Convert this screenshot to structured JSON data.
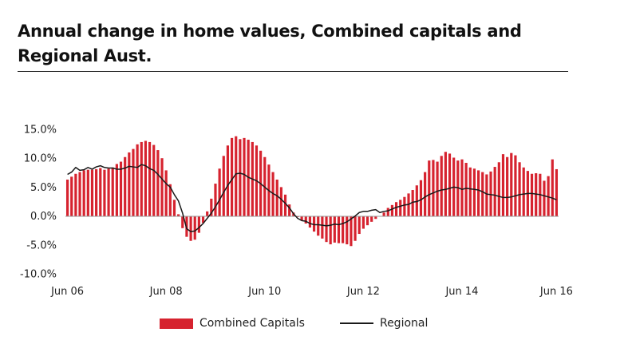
{
  "chart_data": {
    "type": "bar+line",
    "title": "Annual change in home values, Combined capitals and Regional Aust.",
    "xlabel": "",
    "ylabel": "",
    "x_tick_labels": [
      "Jun 06",
      "Jun 08",
      "Jun 10",
      "Jun 12",
      "Jun 14",
      "Jun 16"
    ],
    "y_tick_labels": [
      "15.0%",
      "10.0%",
      "5.0%",
      "0.0%",
      "-5.0%",
      "-10.0%"
    ],
    "ylim": [
      -10,
      15
    ],
    "grid": false,
    "legend_position": "bottom",
    "colors": {
      "bars": "#d6232f",
      "line": "#1a1a1a"
    },
    "series": [
      {
        "name": "Combined Capitals",
        "type": "bar",
        "values": [
          6.3,
          6.8,
          7.3,
          7.6,
          7.9,
          8.0,
          8.0,
          8.1,
          8.3,
          8.0,
          8.2,
          8.4,
          9.0,
          9.4,
          10.2,
          11.0,
          11.6,
          12.4,
          12.8,
          13.0,
          12.8,
          12.3,
          11.4,
          10.0,
          7.9,
          5.5,
          2.8,
          0.3,
          -2.1,
          -3.6,
          -4.3,
          -4.1,
          -2.9,
          -1.2,
          0.8,
          3.0,
          5.6,
          8.2,
          10.4,
          12.2,
          13.5,
          13.8,
          13.3,
          13.5,
          13.2,
          12.8,
          12.2,
          11.3,
          10.2,
          8.9,
          7.6,
          6.3,
          5.0,
          3.7,
          2.0,
          0.6,
          -0.2,
          -0.8,
          -1.3,
          -2.0,
          -2.7,
          -3.4,
          -3.9,
          -4.5,
          -4.9,
          -4.6,
          -4.7,
          -4.7,
          -4.9,
          -5.2,
          -4.3,
          -3.1,
          -2.2,
          -1.6,
          -1.0,
          -0.5,
          0.0,
          0.6,
          1.4,
          1.9,
          2.4,
          2.8,
          3.3,
          3.9,
          4.5,
          5.3,
          6.2,
          7.6,
          9.6,
          9.7,
          9.4,
          10.4,
          11.1,
          10.8,
          10.1,
          9.6,
          9.8,
          9.2,
          8.4,
          8.2,
          7.9,
          7.6,
          7.2,
          7.7,
          8.5,
          9.3,
          10.7,
          10.2,
          10.9,
          10.5,
          9.3,
          8.4,
          7.8,
          7.3,
          7.4,
          7.3,
          6.1,
          6.9,
          9.8,
          8.1
        ]
      },
      {
        "name": "Regional",
        "type": "line",
        "values": [
          7.2,
          7.6,
          8.4,
          7.9,
          8.0,
          8.4,
          8.1,
          8.5,
          8.7,
          8.4,
          8.3,
          8.3,
          8.1,
          8.1,
          8.3,
          8.6,
          8.5,
          8.4,
          8.9,
          8.7,
          8.2,
          7.9,
          7.2,
          6.4,
          5.6,
          5.0,
          3.7,
          2.6,
          0.5,
          -2.2,
          -2.7,
          -2.6,
          -2.0,
          -1.3,
          -0.4,
          0.5,
          1.6,
          2.8,
          4.1,
          5.3,
          6.3,
          7.3,
          7.4,
          7.2,
          6.7,
          6.4,
          6.1,
          5.6,
          5.0,
          4.4,
          3.9,
          3.5,
          2.9,
          2.2,
          1.4,
          0.4,
          -0.4,
          -0.8,
          -0.9,
          -1.3,
          -1.5,
          -1.5,
          -1.6,
          -1.7,
          -1.6,
          -1.4,
          -1.5,
          -1.3,
          -1.0,
          -0.5,
          0.0,
          0.6,
          0.8,
          0.8,
          1.0,
          1.1,
          0.6,
          0.8,
          0.9,
          1.2,
          1.5,
          1.7,
          1.9,
          2.0,
          2.4,
          2.5,
          2.8,
          3.3,
          3.7,
          4.0,
          4.3,
          4.5,
          4.6,
          4.8,
          5.0,
          4.9,
          4.6,
          4.8,
          4.7,
          4.6,
          4.5,
          4.2,
          3.8,
          3.7,
          3.6,
          3.4,
          3.2,
          3.2,
          3.3,
          3.5,
          3.7,
          3.8,
          3.9,
          3.9,
          3.8,
          3.7,
          3.5,
          3.3,
          3.1,
          2.8
        ]
      }
    ]
  }
}
